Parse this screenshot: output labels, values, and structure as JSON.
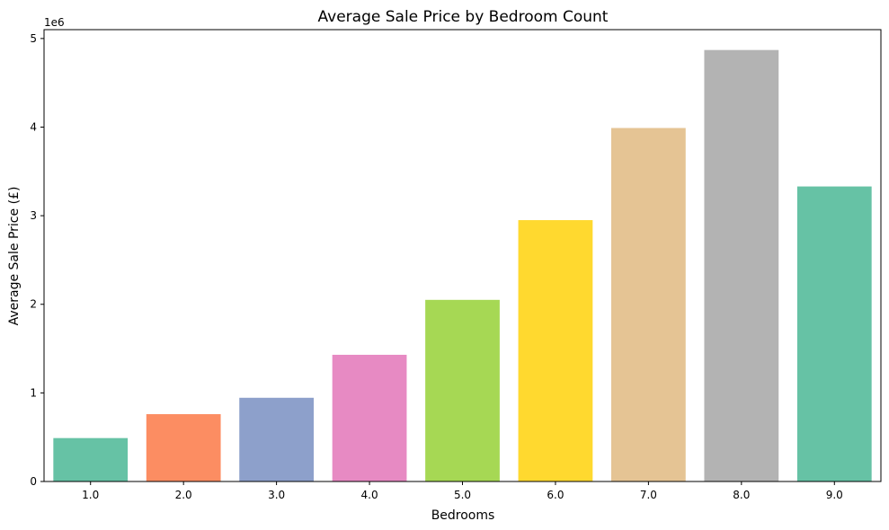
{
  "chart_data": {
    "type": "bar",
    "title": "Average Sale Price by Bedroom Count",
    "xlabel": "Bedrooms",
    "ylabel": "Average Sale Price (£)",
    "y_offset_label": "1e6",
    "categories": [
      "1.0",
      "2.0",
      "3.0",
      "4.0",
      "5.0",
      "6.0",
      "7.0",
      "8.0",
      "9.0"
    ],
    "values": [
      490000,
      760000,
      945000,
      1430000,
      2050000,
      2950000,
      3990000,
      4870000,
      3330000
    ],
    "ylim": [
      0,
      5100000
    ],
    "yticks": [
      0,
      1000000,
      2000000,
      3000000,
      4000000,
      5000000
    ],
    "ytick_labels": [
      "0",
      "1",
      "2",
      "3",
      "4",
      "5"
    ],
    "colors": [
      "#66c2a5",
      "#fc8d62",
      "#8da0cb",
      "#e78ac3",
      "#a6d854",
      "#ffd92f",
      "#e5c494",
      "#b3b3b3",
      "#66c2a5"
    ],
    "grid": false,
    "legend": "none"
  }
}
